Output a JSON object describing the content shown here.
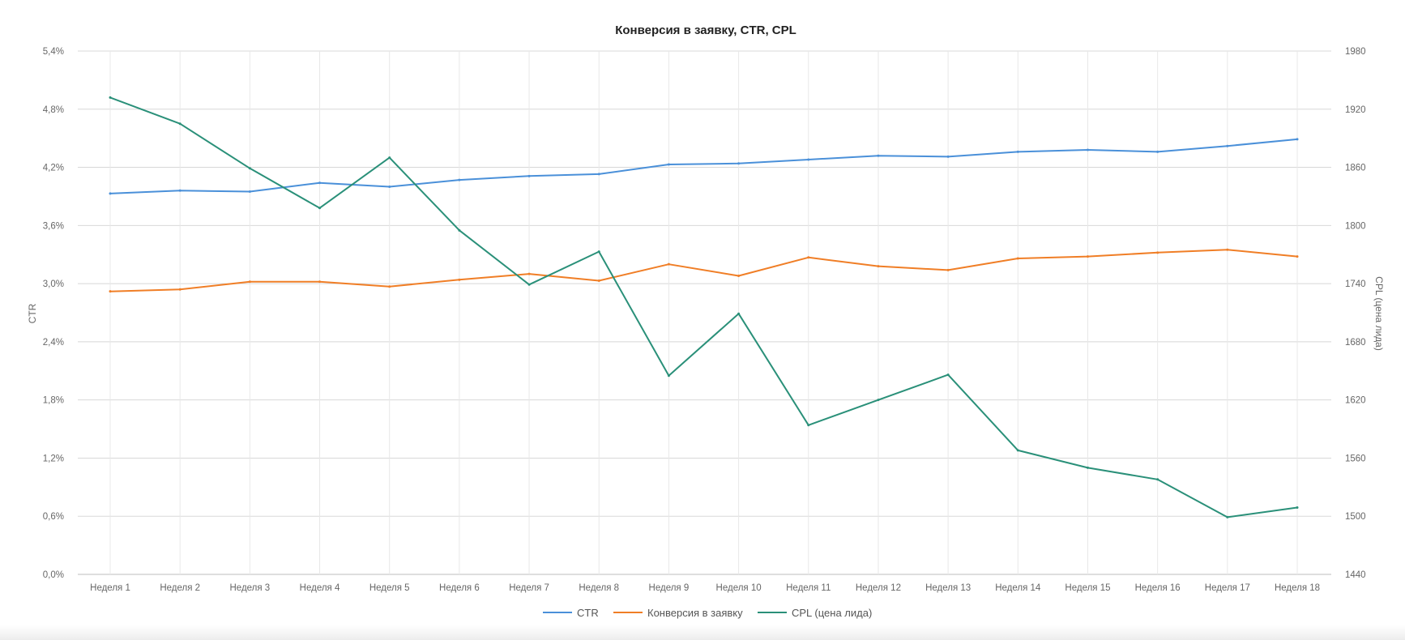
{
  "chart_data": {
    "type": "line",
    "title": "Конверсия в заявку, CTR, CPL",
    "categories": [
      "Неделя 1",
      "Неделя 2",
      "Неделя 3",
      "Неделя 4",
      "Неделя 5",
      "Неделя 6",
      "Неделя 7",
      "Неделя 8",
      "Неделя 9",
      "Неделя 10",
      "Неделя 11",
      "Неделя 12",
      "Неделя 13",
      "Неделя 14",
      "Неделя 15",
      "Неделя 16",
      "Неделя 17",
      "Неделя 18"
    ],
    "y_left": {
      "label": "CTR",
      "range": [
        0,
        5.4
      ],
      "ticks": [
        "0,0%",
        "0,6%",
        "1,2%",
        "1,8%",
        "2,4%",
        "3,0%",
        "3,6%",
        "4,2%",
        "4,8%",
        "5,4%"
      ]
    },
    "y_right": {
      "label": "CPL (цена лида)",
      "range": [
        1440,
        1980
      ],
      "ticks": [
        "1440",
        "1500",
        "1560",
        "1620",
        "1680",
        "1740",
        "1800",
        "1860",
        "1920",
        "1980"
      ]
    },
    "series": [
      {
        "name": "CTR",
        "axis": "left",
        "color": "#4a90d9",
        "values": [
          3.93,
          3.96,
          3.95,
          4.04,
          4.0,
          4.07,
          4.11,
          4.13,
          4.23,
          4.24,
          4.28,
          4.32,
          4.31,
          4.36,
          4.38,
          4.36,
          4.42,
          4.49
        ]
      },
      {
        "name": "Конверсия в заявку",
        "axis": "left",
        "color": "#f07e26",
        "values": [
          2.92,
          2.94,
          3.02,
          3.02,
          2.97,
          3.04,
          3.1,
          3.03,
          3.2,
          3.08,
          3.27,
          3.18,
          3.14,
          3.26,
          3.28,
          3.32,
          3.35,
          3.28
        ]
      },
      {
        "name": "CPL (цена лида)",
        "axis": "right",
        "color": "#2a9079",
        "values": [
          1932,
          1905,
          1859,
          1818,
          1870,
          1795,
          1739,
          1773,
          1645,
          1709,
          1594,
          1620,
          1646,
          1568,
          1550,
          1538,
          1499,
          1509
        ]
      }
    ],
    "grid": true,
    "legend_position": "bottom-center"
  }
}
